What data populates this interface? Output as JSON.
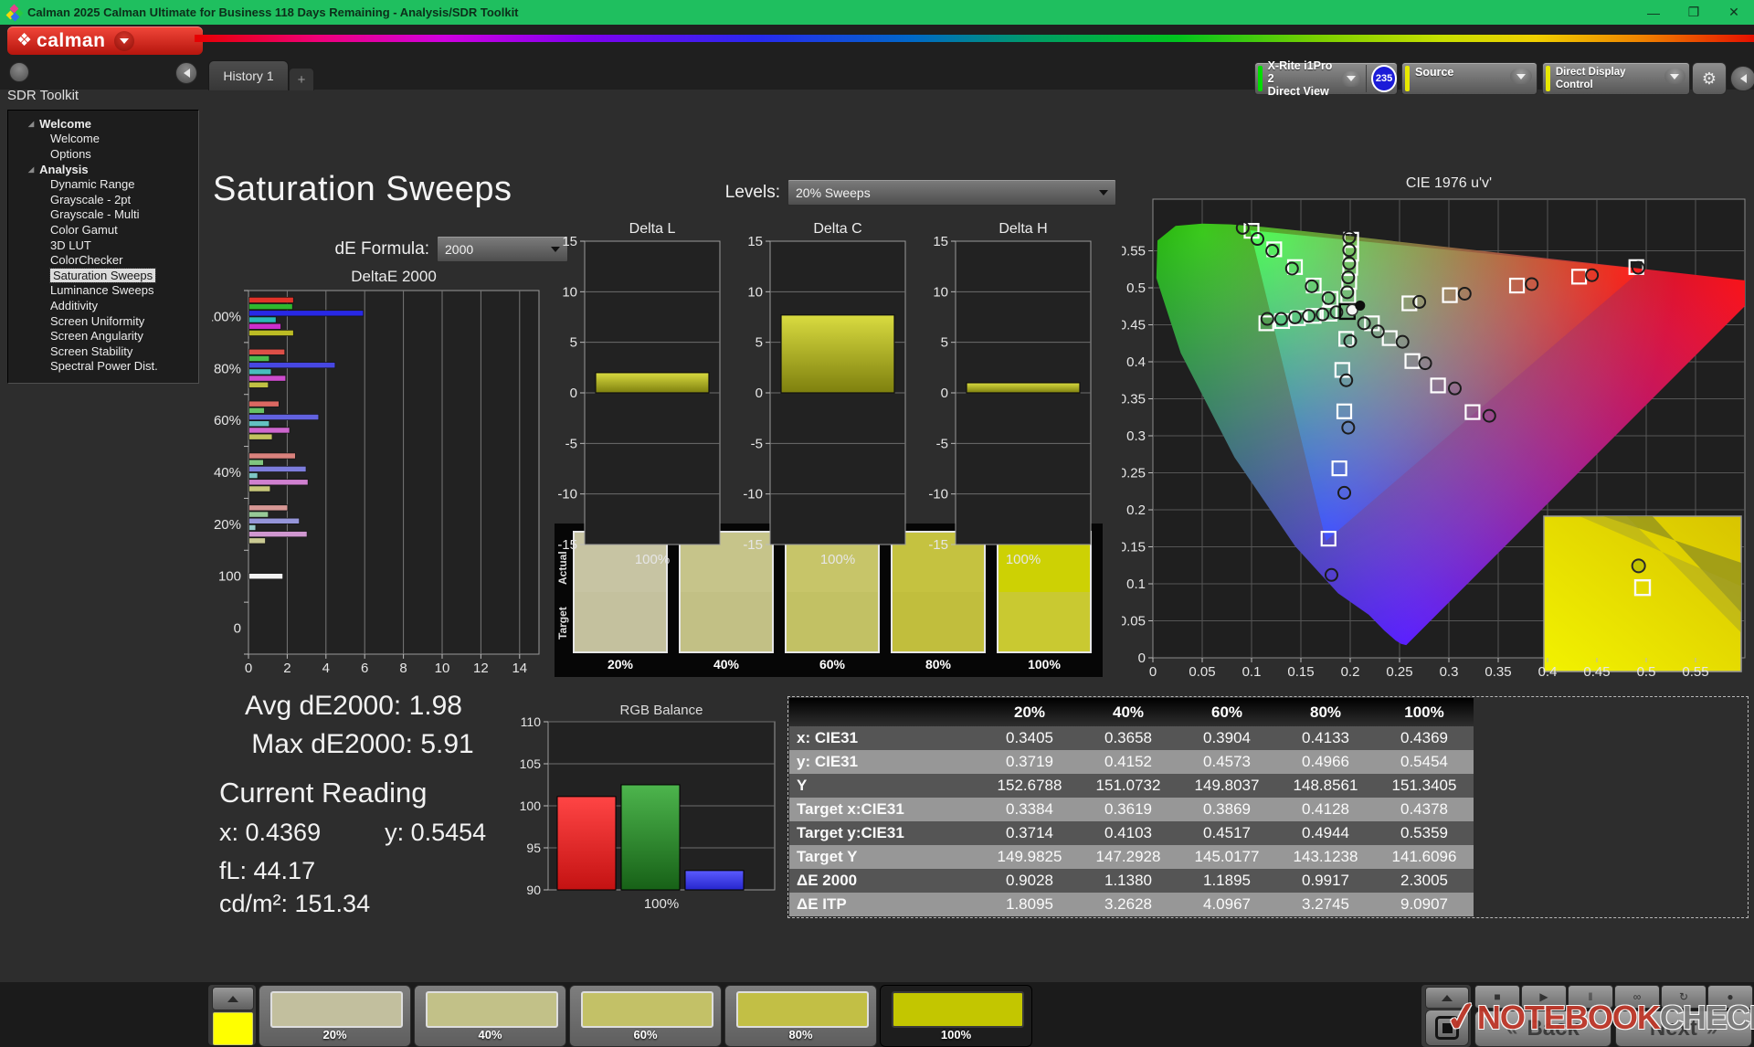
{
  "window": {
    "title": "Calman 2025 Calman Ultimate for Business 118 Days Remaining  - Analysis/SDR Toolkit"
  },
  "brand": {
    "logo_text": "calman"
  },
  "tab_bar": {
    "history_tab": "History 1",
    "add_tab": "+"
  },
  "device_controls": {
    "meter_line1": "X-Rite i1Pro 2",
    "meter_line2": "Direct View",
    "meter_badge": "235",
    "source_label": "Source",
    "display_control_label": "Direct Display Control"
  },
  "sidebar": {
    "title": "SDR Toolkit",
    "selected_item": "Saturation Sweeps",
    "groups": [
      {
        "label": "Welcome",
        "items": [
          "Welcome",
          "Options"
        ]
      },
      {
        "label": "Analysis",
        "items": [
          "Dynamic Range",
          "Grayscale - 2pt",
          "Grayscale - Multi",
          "Color Gamut",
          "3D LUT",
          "ColorChecker",
          "Saturation Sweeps",
          "Luminance Sweeps",
          "Additivity",
          "Screen Uniformity",
          "Screen Angularity",
          "Screen Stability",
          "Spectral Power Dist."
        ]
      }
    ]
  },
  "page": {
    "title": "Saturation Sweeps",
    "de_formula_label": "dE Formula:",
    "de_formula_value": "2000",
    "levels_label": "Levels:",
    "levels_value": "20% Sweeps"
  },
  "stats": {
    "avg": "Avg dE2000: 1.98",
    "max": "Max dE2000: 5.91",
    "current_reading_title": "Current Reading",
    "x": "x: 0.4369",
    "y": "y: 0.5454",
    "fl": "fL: 44.17",
    "cdm2": "cd/m²: 151.34"
  },
  "swatch_compare": {
    "row_labels": [
      "Actual",
      "Target"
    ],
    "columns": [
      {
        "label": "20%",
        "actual": "#c7c4a3",
        "target": "#c4c19e"
      },
      {
        "label": "40%",
        "actual": "#c6c48a",
        "target": "#c2c085"
      },
      {
        "label": "60%",
        "actual": "#c7c569",
        "target": "#c2c164"
      },
      {
        "label": "80%",
        "actual": "#c5c240",
        "target": "#c1be3d"
      },
      {
        "label": "100%",
        "actual": "#cdd104",
        "target": "#c9c931"
      }
    ]
  },
  "bottom_bar": {
    "patch_color": "#ffff00",
    "swatches": [
      {
        "label": "20%",
        "color": "#c2bf9e",
        "selected": false
      },
      {
        "label": "40%",
        "color": "#c2c188",
        "selected": false
      },
      {
        "label": "60%",
        "color": "#c3c167",
        "selected": false
      },
      {
        "label": "80%",
        "color": "#c2bf45",
        "selected": false
      },
      {
        "label": "100%",
        "color": "#c3c600",
        "selected": true
      }
    ],
    "icon_buttons": [
      {
        "name": "stop",
        "glyph": "■"
      },
      {
        "name": "play",
        "glyph": "▶"
      },
      {
        "name": "pause",
        "glyph": "‖"
      },
      {
        "name": "continuous",
        "glyph": "∞"
      },
      {
        "name": "refresh",
        "glyph": "↻"
      },
      {
        "name": "record",
        "glyph": "●"
      }
    ],
    "back_label": "Back",
    "next_label": "Next"
  },
  "watermark": {
    "text1": "NOTEBOOK",
    "text2": "CHECK"
  },
  "chart_data": [
    {
      "id": "deltae2000",
      "type": "bar",
      "orientation": "horizontal",
      "title": "DeltaE 2000",
      "xlim": [
        0,
        15
      ],
      "x_ticks": [
        0,
        2,
        4,
        6,
        8,
        10,
        12,
        14
      ],
      "series_order": [
        "red",
        "green",
        "blue",
        "cyan",
        "magenta",
        "yellow"
      ],
      "series_colors": [
        "#e03228",
        "#2eb82e",
        "#2828e6",
        "#2ab8b8",
        "#cc2ecc",
        "#bcbc24"
      ],
      "groups": [
        {
          "label": "100%",
          "values": [
            2.3,
            2.25,
            5.91,
            1.4,
            1.65,
            2.3
          ]
        },
        {
          "label": "80%",
          "values": [
            1.85,
            1.05,
            4.45,
            1.15,
            1.9,
            1.0
          ]
        },
        {
          "label": "60%",
          "values": [
            1.55,
            0.8,
            3.6,
            1.05,
            2.1,
            1.2
          ]
        },
        {
          "label": "40%",
          "values": [
            2.4,
            0.75,
            2.95,
            0.45,
            3.05,
            1.1
          ]
        },
        {
          "label": "20%",
          "values": [
            2.0,
            1.0,
            2.6,
            0.35,
            3.0,
            0.85
          ]
        },
        {
          "label": "100",
          "values": [
            1.75
          ],
          "single_color": "#f2f2f2"
        },
        {
          "label": "0",
          "values": []
        }
      ]
    },
    {
      "id": "delta_l",
      "type": "bar",
      "title": "Delta L",
      "category": "100%",
      "value": 2.0,
      "ylim": [
        -15,
        15
      ],
      "y_ticks": [
        -15,
        -10,
        -5,
        0,
        5,
        10,
        15
      ],
      "bar_color": "#c8ca2a"
    },
    {
      "id": "delta_c",
      "type": "bar",
      "title": "Delta C",
      "category": "100%",
      "value": 7.7,
      "ylim": [
        -15,
        15
      ],
      "y_ticks": [
        -15,
        -10,
        -5,
        0,
        5,
        10,
        15
      ],
      "bar_color": "#c8ca2a"
    },
    {
      "id": "delta_h",
      "type": "bar",
      "title": "Delta H",
      "category": "100%",
      "value": 1.0,
      "ylim": [
        -15,
        15
      ],
      "y_ticks": [
        -15,
        -10,
        -5,
        0,
        5,
        10,
        15
      ],
      "bar_color": "#c8ca2a"
    },
    {
      "id": "rgb_balance",
      "type": "bar",
      "title": "RGB Balance",
      "category": "100%",
      "ylim": [
        90,
        110
      ],
      "y_ticks": [
        90,
        95,
        100,
        105,
        110
      ],
      "series": [
        {
          "name": "red",
          "value": 101.1,
          "color_top": "#ff4545",
          "color_bot": "#c41212"
        },
        {
          "name": "green",
          "value": 102.5,
          "color_top": "#4db54d",
          "color_bot": "#176117"
        },
        {
          "name": "blue",
          "value": 92.3,
          "color_top": "#5a5aff",
          "color_bot": "#2626cc"
        }
      ]
    },
    {
      "id": "cie1976",
      "type": "scatter",
      "title": "CIE 1976 u'v'",
      "xlim": [
        0,
        0.6
      ],
      "ylim": [
        0,
        0.62
      ],
      "x_ticks": [
        0,
        0.05,
        0.1,
        0.15,
        0.2,
        0.25,
        0.3,
        0.35,
        0.4,
        0.45,
        0.5,
        0.55
      ],
      "y_ticks": [
        0,
        0.05,
        0.1,
        0.15,
        0.2,
        0.25,
        0.3,
        0.35,
        0.4,
        0.45,
        0.5,
        0.55
      ],
      "targets": [
        [
          0.26,
          0.479
        ],
        [
          0.301,
          0.49
        ],
        [
          0.369,
          0.503
        ],
        [
          0.432,
          0.515
        ],
        [
          0.49,
          0.528
        ],
        [
          0.18,
          0.485
        ],
        [
          0.163,
          0.503
        ],
        [
          0.144,
          0.528
        ],
        [
          0.123,
          0.552
        ],
        [
          0.1,
          0.577
        ],
        [
          0.196,
          0.431
        ],
        [
          0.192,
          0.389
        ],
        [
          0.194,
          0.333
        ],
        [
          0.189,
          0.256
        ],
        [
          0.178,
          0.161
        ],
        [
          0.179,
          0.465
        ],
        [
          0.163,
          0.462
        ],
        [
          0.147,
          0.459
        ],
        [
          0.131,
          0.455
        ],
        [
          0.115,
          0.452
        ],
        [
          0.222,
          0.452
        ],
        [
          0.24,
          0.432
        ],
        [
          0.263,
          0.401
        ],
        [
          0.289,
          0.368
        ],
        [
          0.324,
          0.332
        ],
        [
          0.198,
          0.489
        ],
        [
          0.199,
          0.508
        ],
        [
          0.2,
          0.527
        ],
        [
          0.201,
          0.546
        ],
        [
          0.201,
          0.565
        ]
      ],
      "measured": [
        [
          0.27,
          0.481
        ],
        [
          0.316,
          0.492
        ],
        [
          0.384,
          0.505
        ],
        [
          0.445,
          0.517
        ],
        [
          0.492,
          0.527
        ],
        [
          0.178,
          0.486
        ],
        [
          0.161,
          0.502
        ],
        [
          0.141,
          0.526
        ],
        [
          0.121,
          0.55
        ],
        [
          0.106,
          0.566
        ],
        [
          0.091,
          0.581
        ],
        [
          0.2,
          0.428
        ],
        [
          0.196,
          0.375
        ],
        [
          0.198,
          0.311
        ],
        [
          0.194,
          0.223
        ],
        [
          0.181,
          0.112
        ],
        [
          0.186,
          0.467
        ],
        [
          0.172,
          0.464
        ],
        [
          0.158,
          0.462
        ],
        [
          0.144,
          0.46
        ],
        [
          0.13,
          0.458
        ],
        [
          0.116,
          0.458
        ],
        [
          0.214,
          0.452
        ],
        [
          0.228,
          0.441
        ],
        [
          0.253,
          0.427
        ],
        [
          0.276,
          0.398
        ],
        [
          0.306,
          0.364
        ],
        [
          0.341,
          0.327
        ],
        [
          0.197,
          0.494
        ],
        [
          0.198,
          0.514
        ],
        [
          0.199,
          0.533
        ],
        [
          0.199,
          0.551
        ],
        [
          0.199,
          0.568
        ]
      ],
      "white_point_target": [
        0.197,
        0.468
      ],
      "white_point_measured": [
        0.202,
        0.47
      ],
      "reference_dot": [
        0.21,
        0.476
      ],
      "inset": {
        "circle_frac": [
          0.48,
          0.32
        ],
        "square_frac": [
          0.5,
          0.46
        ]
      }
    },
    {
      "id": "saturation_table",
      "type": "table",
      "columns": [
        "20%",
        "40%",
        "60%",
        "80%",
        "100%"
      ],
      "rows": [
        {
          "label": "x: CIE31",
          "values": [
            "0.3405",
            "0.3658",
            "0.3904",
            "0.4133",
            "0.4369"
          ]
        },
        {
          "label": "y: CIE31",
          "values": [
            "0.3719",
            "0.4152",
            "0.4573",
            "0.4966",
            "0.5454"
          ]
        },
        {
          "label": "Y",
          "values": [
            "152.6788",
            "151.0732",
            "149.8037",
            "148.8561",
            "151.3405"
          ]
        },
        {
          "label": "Target x:CIE31",
          "values": [
            "0.3384",
            "0.3619",
            "0.3869",
            "0.4128",
            "0.4378"
          ]
        },
        {
          "label": "Target y:CIE31",
          "values": [
            "0.3714",
            "0.4103",
            "0.4517",
            "0.4944",
            "0.5359"
          ]
        },
        {
          "label": "Target Y",
          "values": [
            "149.9825",
            "147.2928",
            "145.0177",
            "143.1238",
            "141.6096"
          ]
        },
        {
          "label": "ΔE 2000",
          "values": [
            "0.9028",
            "1.1380",
            "1.1895",
            "0.9917",
            "2.3005"
          ]
        },
        {
          "label": "ΔE ITP",
          "values": [
            "1.8095",
            "3.2628",
            "4.0967",
            "3.2745",
            "9.0907"
          ]
        }
      ]
    }
  ]
}
